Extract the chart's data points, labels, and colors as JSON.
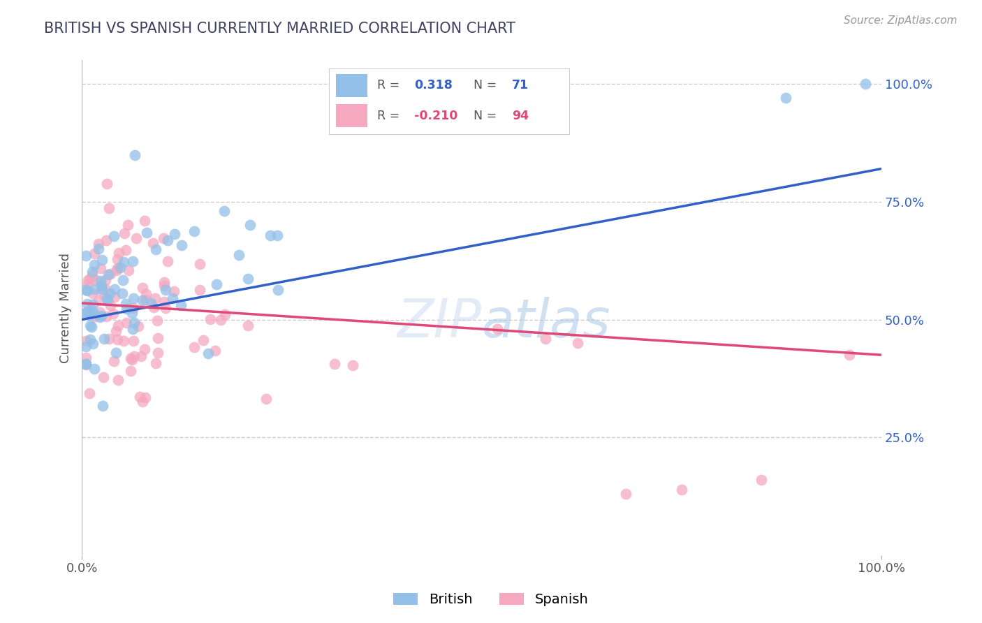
{
  "title": "BRITISH VS SPANISH CURRENTLY MARRIED CORRELATION CHART",
  "source": "Source: ZipAtlas.com",
  "ylabel": "Currently Married",
  "ylabel_right_labels": [
    "100.0%",
    "75.0%",
    "50.0%",
    "25.0%"
  ],
  "ylabel_right_positions": [
    1.0,
    0.75,
    0.5,
    0.25
  ],
  "watermark": "ZIPatlas",
  "british_R": 0.318,
  "british_N": 71,
  "spanish_R": -0.21,
  "spanish_N": 94,
  "blue_color": "#92C0E8",
  "pink_color": "#F5A8C0",
  "blue_line_color": "#3060C8",
  "pink_line_color": "#E04878",
  "title_color": "#404060",
  "grid_color": "#cccccc",
  "background_color": "#ffffff",
  "blue_line_x0": 0.0,
  "blue_line_y0": 0.5,
  "blue_line_x1": 1.0,
  "blue_line_y1": 0.82,
  "pink_line_x0": 0.0,
  "pink_line_y0": 0.535,
  "pink_line_x1": 1.0,
  "pink_line_y1": 0.425,
  "xlim": [
    0.0,
    1.0
  ],
  "ylim": [
    0.0,
    1.05
  ]
}
